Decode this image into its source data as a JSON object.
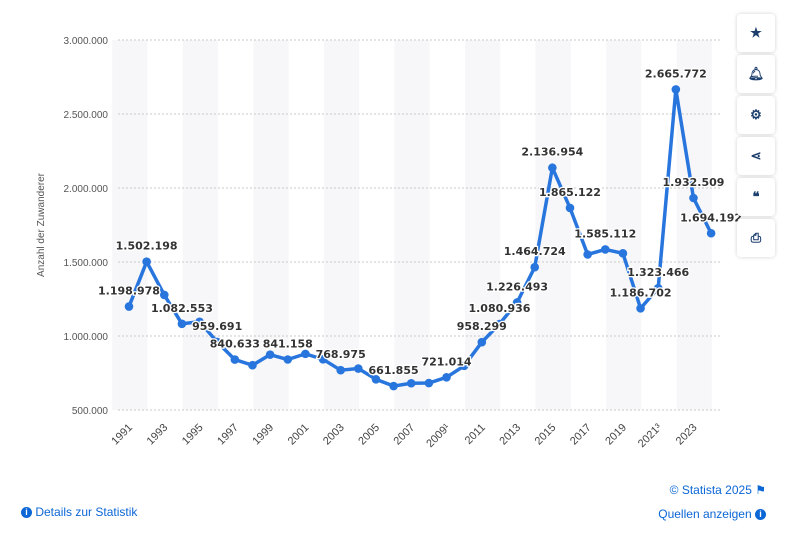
{
  "chart_data": {
    "type": "line",
    "title": "",
    "xlabel": "",
    "ylabel": "Anzahl der Zuwanderer",
    "ylim": [
      500000,
      3000000
    ],
    "yticks": [
      "500.000",
      "1.000.000",
      "1.500.000",
      "2.000.000",
      "2.500.000",
      "3.000.000"
    ],
    "ytick_values": [
      500000,
      1000000,
      1500000,
      2000000,
      2500000,
      3000000
    ],
    "grid": true,
    "color": "#2876dd",
    "x": [
      1991,
      1992,
      1993,
      1994,
      1995,
      1996,
      1997,
      1998,
      1999,
      2000,
      2001,
      2002,
      2003,
      2004,
      2005,
      2006,
      2007,
      2008,
      2009,
      2010,
      2011,
      2012,
      2013,
      2014,
      2015,
      2016,
      2017,
      2018,
      2019,
      2020,
      2021,
      2022,
      2023,
      2024
    ],
    "xtick_labels": [
      "1991",
      "1993",
      "1995",
      "1997",
      "1999",
      "2001",
      "2003",
      "2005",
      "2007",
      "2009¹",
      "2011",
      "2013",
      "2015",
      "2017",
      "2019",
      "2021³",
      "2023"
    ],
    "series": [
      {
        "values": [
          1198978,
          1502198,
          1277408,
          1082553,
          1096048,
          959691,
          840633,
          802456,
          874023,
          841158,
          879217,
          842543,
          768975,
          780175,
          707352,
          661855,
          680766,
          682146,
          721014,
          798282,
          958299,
          1080936,
          1226493,
          1464724,
          2136954,
          1865122,
          1550721,
          1585112,
          1558612,
          1186702,
          1323466,
          2665772,
          1932509,
          1694192
        ],
        "data_labels": {
          "0": "1.198.978",
          "1": "1.502.198",
          "3": "1.082.553",
          "5": "959.691",
          "6": "840.633",
          "9": "841.158",
          "12": "768.975",
          "15": "661.855",
          "18": "721.014",
          "20": "958.299",
          "21": "1.080.936",
          "22": "1.226.493",
          "23": "1.464.724",
          "24": "2.136.954",
          "25": "1.865.122",
          "27": "1.585.112",
          "29": "1.186.702",
          "30": "1.323.466",
          "31": "2.665.772",
          "32": "1.932.509",
          "33": "1.694.192"
        }
      }
    ]
  },
  "sidebar": {
    "icons": [
      "star-icon",
      "bell-icon",
      "gear-icon",
      "share-icon",
      "quote-icon",
      "print-icon"
    ]
  },
  "footer": {
    "details": "Details zur Statistik",
    "copyright": "© Statista 2025",
    "sources": "Quellen anzeigen"
  }
}
